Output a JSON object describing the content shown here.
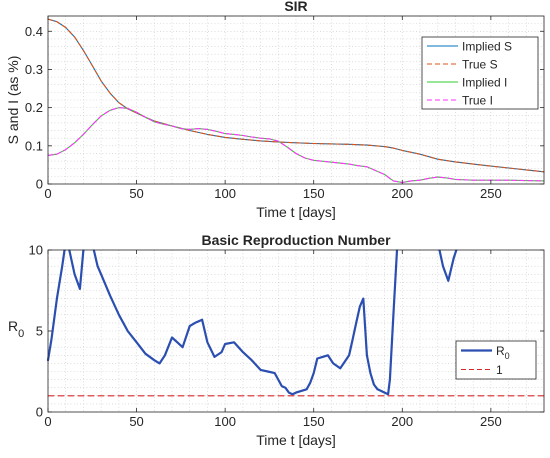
{
  "chart_data": [
    {
      "type": "line",
      "title": "SIR",
      "xlabel": "Time t [days]",
      "ylabel": "S and I (as %)",
      "xlim": [
        0,
        280
      ],
      "ylim": [
        0,
        0.44
      ],
      "xticks": [
        0,
        50,
        100,
        150,
        200,
        250
      ],
      "xtick_labels": [
        "0",
        "50",
        "100",
        "150",
        "200",
        "250"
      ],
      "yticks": [
        0,
        0.1,
        0.2,
        0.3,
        0.4
      ],
      "ytick_labels": [
        "0",
        "0.1",
        "0.2",
        "0.3",
        "0.4"
      ],
      "grid": "dotted",
      "legend_position": "top-right",
      "series": [
        {
          "name": "Implied S",
          "color": "#0072bd",
          "style": "solid",
          "x": [
            0,
            5,
            10,
            15,
            20,
            25,
            30,
            35,
            40,
            45,
            50,
            55,
            60,
            70,
            80,
            90,
            100,
            110,
            120,
            130,
            140,
            150,
            160,
            170,
            180,
            185,
            190,
            195,
            200,
            210,
            220,
            230,
            240,
            250,
            260,
            270,
            280
          ],
          "values": [
            0.432,
            0.425,
            0.41,
            0.385,
            0.35,
            0.31,
            0.27,
            0.238,
            0.213,
            0.197,
            0.186,
            0.175,
            0.165,
            0.152,
            0.14,
            0.13,
            0.122,
            0.117,
            0.113,
            0.11,
            0.108,
            0.106,
            0.105,
            0.104,
            0.102,
            0.1,
            0.098,
            0.094,
            0.088,
            0.078,
            0.065,
            0.058,
            0.052,
            0.047,
            0.042,
            0.037,
            0.032
          ]
        },
        {
          "name": "True S",
          "color": "#d95319",
          "style": "dashed",
          "x": [
            0,
            5,
            10,
            15,
            20,
            25,
            30,
            35,
            40,
            45,
            50,
            55,
            60,
            70,
            80,
            90,
            100,
            110,
            120,
            130,
            140,
            150,
            160,
            170,
            180,
            185,
            190,
            195,
            200,
            210,
            220,
            230,
            240,
            250,
            260,
            270,
            280
          ],
          "values": [
            0.432,
            0.425,
            0.41,
            0.385,
            0.35,
            0.31,
            0.27,
            0.238,
            0.213,
            0.197,
            0.186,
            0.175,
            0.165,
            0.152,
            0.14,
            0.13,
            0.122,
            0.117,
            0.113,
            0.11,
            0.108,
            0.106,
            0.105,
            0.104,
            0.102,
            0.1,
            0.098,
            0.094,
            0.088,
            0.078,
            0.065,
            0.058,
            0.052,
            0.047,
            0.042,
            0.037,
            0.032
          ]
        },
        {
          "name": "Implied I",
          "color": "#33cc33",
          "style": "solid",
          "x": [
            0,
            5,
            10,
            15,
            20,
            25,
            30,
            35,
            40,
            45,
            50,
            55,
            60,
            65,
            70,
            75,
            80,
            85,
            90,
            95,
            100,
            105,
            110,
            115,
            120,
            125,
            130,
            135,
            140,
            145,
            150,
            160,
            170,
            175,
            180,
            185,
            190,
            195,
            200,
            205,
            210,
            215,
            220,
            225,
            230,
            240,
            250,
            260,
            270,
            280
          ],
          "values": [
            0.075,
            0.078,
            0.09,
            0.108,
            0.13,
            0.155,
            0.178,
            0.193,
            0.2,
            0.198,
            0.188,
            0.175,
            0.163,
            0.157,
            0.152,
            0.145,
            0.143,
            0.145,
            0.143,
            0.138,
            0.132,
            0.13,
            0.127,
            0.123,
            0.12,
            0.118,
            0.112,
            0.097,
            0.08,
            0.068,
            0.062,
            0.057,
            0.052,
            0.048,
            0.045,
            0.035,
            0.025,
            0.008,
            0.004,
            0.008,
            0.01,
            0.015,
            0.018,
            0.016,
            0.012,
            0.01,
            0.01,
            0.01,
            0.009,
            0.008
          ]
        },
        {
          "name": "True I",
          "color": "#ff33ff",
          "style": "dashed",
          "x": [
            0,
            5,
            10,
            15,
            20,
            25,
            30,
            35,
            40,
            45,
            50,
            55,
            60,
            65,
            70,
            75,
            80,
            85,
            90,
            95,
            100,
            105,
            110,
            115,
            120,
            125,
            130,
            135,
            140,
            145,
            150,
            160,
            170,
            175,
            180,
            185,
            190,
            195,
            200,
            205,
            210,
            215,
            220,
            225,
            230,
            240,
            250,
            260,
            270,
            280
          ],
          "values": [
            0.075,
            0.078,
            0.09,
            0.108,
            0.13,
            0.155,
            0.178,
            0.193,
            0.2,
            0.198,
            0.188,
            0.175,
            0.163,
            0.157,
            0.152,
            0.145,
            0.143,
            0.145,
            0.143,
            0.138,
            0.132,
            0.13,
            0.127,
            0.123,
            0.12,
            0.118,
            0.112,
            0.097,
            0.08,
            0.068,
            0.062,
            0.057,
            0.052,
            0.048,
            0.045,
            0.035,
            0.025,
            0.008,
            0.004,
            0.008,
            0.01,
            0.015,
            0.018,
            0.016,
            0.012,
            0.01,
            0.01,
            0.01,
            0.009,
            0.008
          ]
        }
      ]
    },
    {
      "type": "line",
      "title": "Basic Reproduction Number",
      "xlabel": "Time t [days]",
      "ylabel": "R",
      "ylabel_subscript": "0",
      "xlim": [
        0,
        280
      ],
      "ylim": [
        0,
        10
      ],
      "xticks": [
        0,
        50,
        100,
        150,
        200,
        250
      ],
      "xtick_labels": [
        "0",
        "50",
        "100",
        "150",
        "200",
        "250"
      ],
      "yticks": [
        0,
        5,
        10
      ],
      "ytick_labels": [
        "0",
        "5",
        "10"
      ],
      "grid": "dotted",
      "legend_position": "bottom-right",
      "series": [
        {
          "name": "R",
          "name_subscript": "0",
          "color": "#2b4fb0",
          "style": "solid",
          "x": [
            0,
            2,
            5,
            8,
            10,
            12,
            15,
            18,
            20,
            22,
            25,
            28,
            30,
            35,
            40,
            45,
            50,
            55,
            60,
            63,
            66,
            70,
            73,
            76,
            80,
            83,
            87,
            90,
            94,
            98,
            100,
            105,
            110,
            115,
            120,
            124,
            128,
            132,
            134,
            136,
            138,
            140,
            143,
            146,
            148,
            150,
            152,
            155,
            158,
            161,
            165,
            170,
            172,
            174,
            176,
            178,
            180,
            182,
            184,
            186,
            188,
            190,
            192,
            193,
            195,
            197,
            198
          ],
          "values": [
            3.2,
            4.5,
            7,
            9,
            10.8,
            10,
            8.5,
            7.6,
            10,
            11,
            10.4,
            9,
            8.5,
            7.2,
            6,
            5,
            4.3,
            3.6,
            3.2,
            3.0,
            3.5,
            4.6,
            4.3,
            4.0,
            5.3,
            5.5,
            5.7,
            4.3,
            3.4,
            3.7,
            4.2,
            4.3,
            3.7,
            3.2,
            2.6,
            2.5,
            2.4,
            1.6,
            1.5,
            1.2,
            1.1,
            1.2,
            1.3,
            1.4,
            1.8,
            2.4,
            3.3,
            3.4,
            3.5,
            3.0,
            2.7,
            3.5,
            4.5,
            5.5,
            6.5,
            7.0,
            3.5,
            2.4,
            1.7,
            1.4,
            1.3,
            1.2,
            1.1,
            2.0,
            6.0,
            10.0,
            11.0
          ]
        },
        {
          "name": "R",
          "name_subscript": "0",
          "color": "#2b4fb0",
          "style": "solid",
          "hide_legend": true,
          "x": [
            220,
            223,
            226,
            229,
            232
          ],
          "values": [
            10.5,
            9.0,
            8.1,
            9.5,
            10.5
          ]
        },
        {
          "name": "1",
          "color": "#d62728",
          "style": "dashed",
          "x": [
            0,
            280
          ],
          "values": [
            1,
            1
          ]
        }
      ]
    }
  ]
}
